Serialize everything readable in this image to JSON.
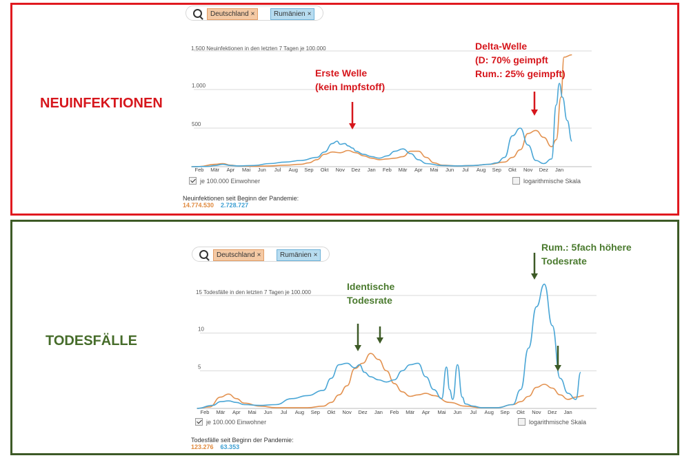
{
  "colors": {
    "deutschland": "#e39250",
    "rumaenien": "#4aa6d6",
    "red": "#d6161c",
    "green": "#466c2a"
  },
  "panels": [
    {
      "section_label": "NEUINFEKTIONEN",
      "chips": [
        {
          "label": "Deutschland"
        },
        {
          "label": "Rumänien"
        }
      ],
      "chip_close": "×",
      "checkbox_label": "je 100.000 Einwohner",
      "log_label": "logarithmische Skala",
      "totals_title": "Neuinfektionen seit Beginn der Pandemie:",
      "total_de": "14.774.530",
      "total_ro": "2.728.727",
      "annotations": [
        {
          "lines": [
            "Erste Welle",
            "(kein Impfstoff)"
          ]
        },
        {
          "lines": [
            "Delta-Welle",
            "(D: 70% geimpft",
            "Rum.: 25% geimpft)"
          ]
        }
      ],
      "chart_data": {
        "type": "line",
        "title": "1.500 Neuinfektionen in den letzten 7 Tagen je 100.000",
        "ylim": [
          0,
          1500
        ],
        "yticks": [
          {
            "value": 500,
            "label": "500"
          },
          {
            "value": 1000,
            "label": "1.000"
          },
          {
            "value": 1500,
            "label": "1.500"
          }
        ],
        "months": [
          "Feb",
          "Mär",
          "Apr",
          "Mai",
          "Jun",
          "Jul",
          "Aug",
          "Sep",
          "Okt",
          "Nov",
          "Dez",
          "Jan",
          "Feb",
          "Mär",
          "Apr",
          "Mai",
          "Jun",
          "Jul",
          "Aug",
          "Sep",
          "Okt",
          "Nov",
          "Dez",
          "Jan"
        ],
        "series": [
          {
            "name": "Deutschland",
            "x": [
              0,
              0.5,
              1.5,
              2,
              2.5,
              3,
              4,
              5,
              6,
              7,
              7.5,
              8,
              8.5,
              9,
              9.5,
              10,
              10.5,
              11,
              11.5,
              12,
              12.5,
              13,
              13.5,
              14,
              14.5,
              15,
              15.5,
              16,
              17,
              18,
              19,
              20,
              20.5,
              21,
              21.5,
              22,
              22.5,
              23,
              23.3,
              23.6,
              23.8,
              24.3
            ],
            "y": [
              0,
              2,
              30,
              40,
              20,
              10,
              5,
              10,
              20,
              30,
              50,
              90,
              160,
              190,
              180,
              210,
              180,
              140,
              110,
              90,
              100,
              110,
              130,
              200,
              200,
              120,
              50,
              20,
              10,
              15,
              30,
              60,
              120,
              220,
              430,
              470,
              380,
              260,
              350,
              900,
              1420,
              1450
            ]
          },
          {
            "name": "Rumänien",
            "x": [
              0,
              1,
              1.5,
              2,
              2.5,
              3,
              4,
              5,
              6,
              7,
              8,
              8.5,
              9,
              9.3,
              9.5,
              9.8,
              10,
              10.3,
              10.5,
              11,
              11.5,
              12,
              12.5,
              13,
              13.5,
              14,
              14.5,
              15,
              16,
              17,
              18,
              19,
              19.5,
              20,
              20.5,
              21,
              21.5,
              22,
              22.5,
              23,
              23.3,
              23.5,
              23.7,
              24,
              24.3
            ],
            "y": [
              0,
              3,
              15,
              30,
              15,
              10,
              15,
              40,
              60,
              80,
              120,
              190,
              300,
              330,
              290,
              300,
              270,
              240,
              200,
              160,
              130,
              110,
              140,
              200,
              230,
              170,
              90,
              40,
              15,
              10,
              15,
              30,
              50,
              120,
              400,
              500,
              280,
              80,
              40,
              100,
              800,
              1080,
              900,
              600,
              330
            ]
          }
        ]
      }
    },
    {
      "section_label": "TODESFÄLLE",
      "chips": [
        {
          "label": "Deutschland"
        },
        {
          "label": "Rumänien"
        }
      ],
      "chip_close": "×",
      "checkbox_label": "je 100.000 Einwohner",
      "log_label": "logarithmische Skala",
      "totals_title": "Todesfälle seit Beginn der Pandemie:",
      "total_de": "123.276",
      "total_ro": "63.353",
      "annotations": [
        {
          "lines": [
            "Identische",
            "Todesrate"
          ]
        },
        {
          "lines": [
            "Rum.: 5fach höhere",
            "Todesrate"
          ]
        }
      ],
      "chart_data": {
        "type": "line",
        "title": "15 Todesfälle in den letzten 7 Tagen je 100.000",
        "ylim": [
          0,
          15
        ],
        "yticks": [
          {
            "value": 5,
            "label": "5"
          },
          {
            "value": 10,
            "label": "10"
          },
          {
            "value": 15,
            "label": "15"
          }
        ],
        "months": [
          "Feb",
          "Mär",
          "Apr",
          "Mai",
          "Jun",
          "Jul",
          "Aug",
          "Sep",
          "Okt",
          "Nov",
          "Dez",
          "Jan",
          "Feb",
          "Mär",
          "Apr",
          "Mai",
          "Jun",
          "Jul",
          "Aug",
          "Sep",
          "Okt",
          "Nov",
          "Dez",
          "Jan"
        ],
        "series": [
          {
            "name": "Deutschland",
            "x": [
              0,
              0.8,
              1.5,
              2,
              2.5,
              3,
              4,
              5,
              6,
              7,
              8,
              8.5,
              9,
              9.5,
              10,
              10.5,
              11,
              11.5,
              12,
              12.5,
              13,
              13.5,
              14,
              14.5,
              15,
              16,
              17,
              18,
              19,
              20,
              20.5,
              21,
              21.5,
              22,
              22.5,
              23,
              23.5,
              24,
              24.5
            ],
            "y": [
              0,
              0.2,
              1.5,
              1.9,
              1.3,
              0.7,
              0.3,
              0.1,
              0.1,
              0.1,
              0.3,
              0.8,
              1.8,
              3,
              5.3,
              6,
              7.3,
              6.5,
              5,
              3.3,
              2.2,
              1.6,
              1.8,
              2,
              1.7,
              0.8,
              0.3,
              0.1,
              0.1,
              0.5,
              0.9,
              1.6,
              2.8,
              3.2,
              2.7,
              1.8,
              1.2,
              1.5,
              1.7
            ]
          },
          {
            "name": "Rumänien",
            "x": [
              0,
              1,
              1.5,
              2,
              2.5,
              3,
              4,
              5,
              6,
              7,
              8,
              8.5,
              9,
              9.5,
              10,
              10.3,
              10.6,
              11,
              11.5,
              12,
              12.5,
              13,
              13.5,
              14,
              14.5,
              15,
              15.5,
              15.8,
              16,
              16.2,
              16.5,
              16.8,
              17,
              17.5,
              18,
              19,
              20,
              20.5,
              21,
              21.5,
              22,
              22.5,
              23,
              23.5,
              24,
              24.3
            ],
            "y": [
              0,
              0.4,
              0.9,
              1,
              0.8,
              0.5,
              0.4,
              0.5,
              1.3,
              1.7,
              2.4,
              4,
              5.8,
              6,
              5.4,
              5.8,
              4.8,
              4.2,
              3.8,
              3.5,
              3.8,
              5,
              5.8,
              6,
              4.2,
              2.5,
              1.3,
              5.5,
              2.5,
              1.2,
              5.8,
              1.5,
              0.6,
              0.3,
              0.1,
              0.1,
              0.5,
              2.5,
              8,
              13.5,
              16.5,
              11,
              4,
              2,
              1.2,
              4.8
            ]
          }
        ]
      }
    }
  ]
}
